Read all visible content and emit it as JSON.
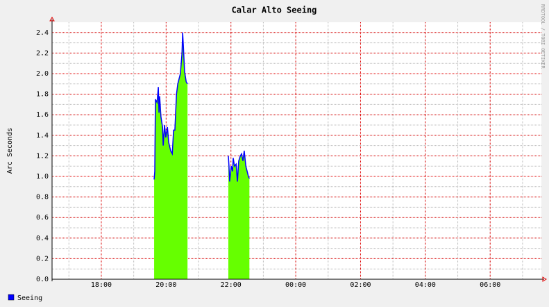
{
  "chart_data": {
    "type": "area",
    "title": "Calar Alto Seeing",
    "ylabel": "Arc Seconds",
    "watermark": "RRDTOOL / TOBI OETIKER",
    "x": [
      19.63,
      19.65,
      19.67,
      19.72,
      19.76,
      19.78,
      19.8,
      19.84,
      19.89,
      19.91,
      19.95,
      19.99,
      20.04,
      20.08,
      20.14,
      20.19,
      20.23,
      20.27,
      20.32,
      20.36,
      20.4,
      20.44,
      20.49,
      20.51,
      20.53,
      20.57,
      20.62,
      20.66,
      21.3,
      21.92,
      21.94,
      21.96,
      22.01,
      22.05,
      22.07,
      22.11,
      22.16,
      22.2,
      22.24,
      22.29,
      22.33,
      22.37,
      22.41,
      22.46,
      22.5,
      22.54,
      22.57
    ],
    "series": [
      {
        "name": "Seeing",
        "color": "#0000ff",
        "fill": "#66ff00",
        "values": [
          0.97,
          1.05,
          1.75,
          1.72,
          1.87,
          1.62,
          1.78,
          1.58,
          1.48,
          1.3,
          1.5,
          1.38,
          1.48,
          1.33,
          1.25,
          1.22,
          1.45,
          1.45,
          1.8,
          1.9,
          1.95,
          2.0,
          2.2,
          2.4,
          2.28,
          2.02,
          1.92,
          1.9,
          null,
          1.2,
          1.1,
          0.95,
          1.1,
          1.05,
          1.18,
          1.1,
          1.12,
          0.95,
          1.15,
          1.2,
          1.22,
          1.15,
          1.25,
          1.1,
          1.05,
          1.0,
          0.98
        ]
      }
    ],
    "xlim": [
      16.48,
      31.58
    ],
    "xticks": [
      {
        "value": 18,
        "label": "18:00"
      },
      {
        "value": 20,
        "label": "20:00"
      },
      {
        "value": 22,
        "label": "22:00"
      },
      {
        "value": 24,
        "label": "00:00"
      },
      {
        "value": 26,
        "label": "02:00"
      },
      {
        "value": 28,
        "label": "04:00"
      },
      {
        "value": 30,
        "label": "06:00"
      }
    ],
    "ylim": [
      0,
      2.5
    ],
    "yticks": [
      {
        "value": 0,
        "label": "0.0"
      },
      0.2,
      0.4,
      0.6,
      0.8,
      {
        "value": 1,
        "label": "1.0"
      },
      1.2,
      1.4,
      1.6,
      1.8,
      {
        "value": 2,
        "label": "2.0"
      },
      2.2,
      2.4
    ],
    "grid": true
  }
}
